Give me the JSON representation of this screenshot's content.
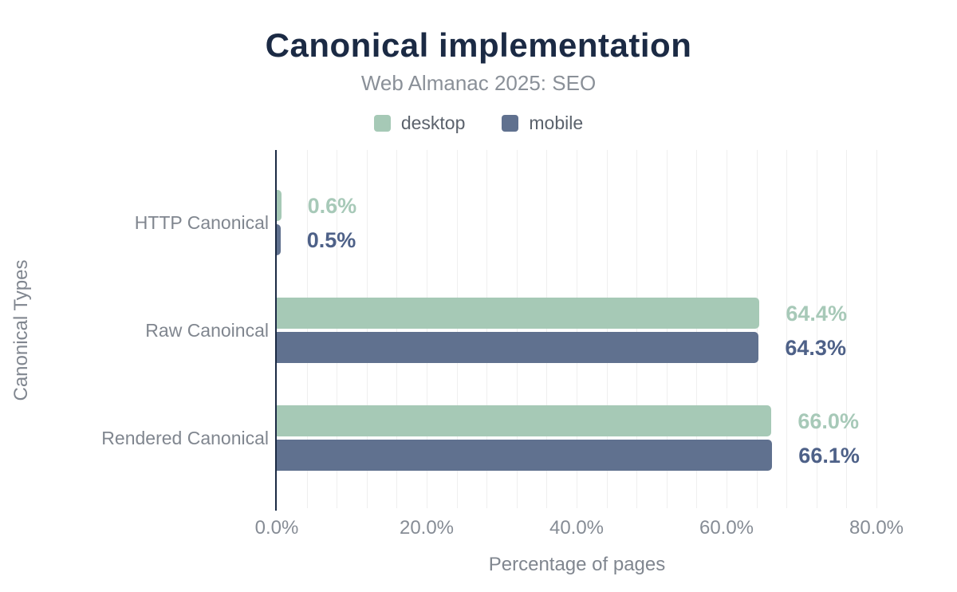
{
  "header": {
    "title": "Canonical implementation",
    "subtitle": "Web Almanac 2025: SEO"
  },
  "chart_data": {
    "type": "bar",
    "orientation": "horizontal",
    "title": "Canonical implementation",
    "subtitle": "Web Almanac 2025: SEO",
    "categories": [
      "HTTP Canonical",
      "Raw Canoincal",
      "Rendered Canonical"
    ],
    "series": [
      {
        "name": "desktop",
        "color": "#a6c9b6",
        "label_color": "#a7c9b8",
        "values": [
          0.6,
          64.4,
          66.0
        ],
        "labels": [
          "0.6%",
          "64.4%",
          "66.0%"
        ]
      },
      {
        "name": "mobile",
        "color": "#60718f",
        "label_color": "#4e6188",
        "values": [
          0.5,
          64.3,
          66.1
        ],
        "labels": [
          "0.5%",
          "64.3%",
          "66.1%"
        ]
      }
    ],
    "xlabel": "Percentage of pages",
    "ylabel": "Canonical Types",
    "xlim": [
      0,
      80
    ],
    "x_tick_values": [
      0,
      20,
      40,
      60,
      80
    ],
    "x_tick_labels": [
      "0.0%",
      "20.0%",
      "40.0%",
      "60.0%",
      "80.0%"
    ],
    "minor_grid_step": 4,
    "grid": true,
    "legend_position": "top",
    "colors": {
      "title": "#1b2a44",
      "axis_line": "#1b2a44",
      "grid_line": "#efefef",
      "tick_text": "#868c95",
      "category_text": "#80868f",
      "subtitle_text": "#8a9098",
      "legend_text": "#5b626c"
    }
  }
}
